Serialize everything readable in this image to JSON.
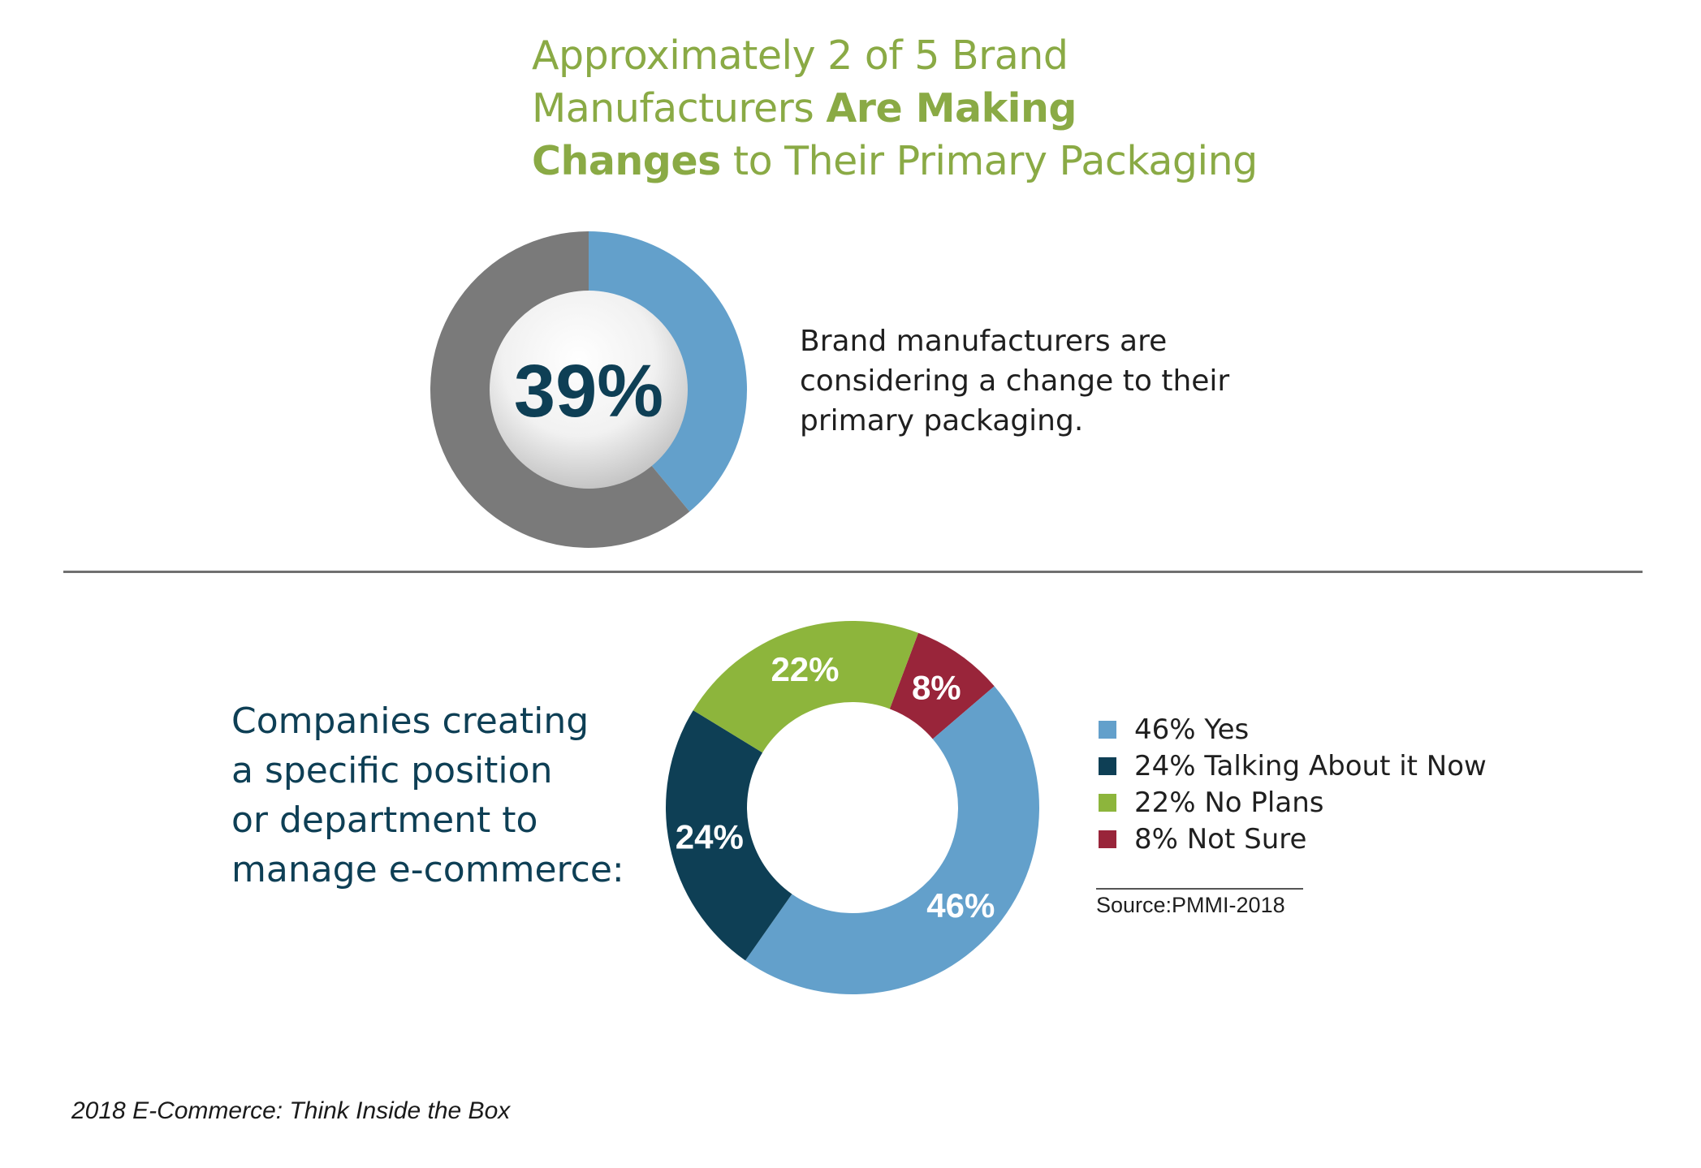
{
  "headline": {
    "line1": "Approximately 2 of 5 Brand",
    "line2_plain": "Manufacturers ",
    "line2_bold": "Are Making",
    "line3_bold": "Changes",
    "line3_plain": " to Their Primary Packaging"
  },
  "section1": {
    "center_label": "39%",
    "description_lines": [
      "Brand manufacturers are",
      "considering a change to their",
      "primary packaging."
    ]
  },
  "section2": {
    "description_lines": [
      "Companies creating",
      "a specific position",
      "or department to",
      "manage e-commerce:"
    ],
    "legend": [
      {
        "label": "46% Yes",
        "color": "#63a0cb"
      },
      {
        "label": "24% Talking About it Now",
        "color": "#0e3f55"
      },
      {
        "label": "22% No Plans",
        "color": "#8db53c"
      },
      {
        "label": "8% Not Sure",
        "color": "#99253a"
      }
    ],
    "source": "Source:PMMI-2018"
  },
  "footer": "2018 E-Commerce: Think Inside the Box",
  "chart_data": [
    {
      "type": "pie",
      "variant": "donut",
      "values": [
        39,
        61
      ],
      "labels": [
        "39%",
        ""
      ],
      "colors": [
        "#63a0cb",
        "#7a7a7a"
      ],
      "center_label": "39%"
    },
    {
      "type": "pie",
      "variant": "donut",
      "categories": [
        "Yes",
        "Talking About it Now",
        "No Plans",
        "Not Sure"
      ],
      "values": [
        46,
        24,
        22,
        8
      ],
      "labels": [
        "46%",
        "24%",
        "22%",
        "8%"
      ],
      "colors": [
        "#63a0cb",
        "#0e3f55",
        "#8db53c",
        "#99253a"
      ],
      "legend_position": "right"
    }
  ]
}
